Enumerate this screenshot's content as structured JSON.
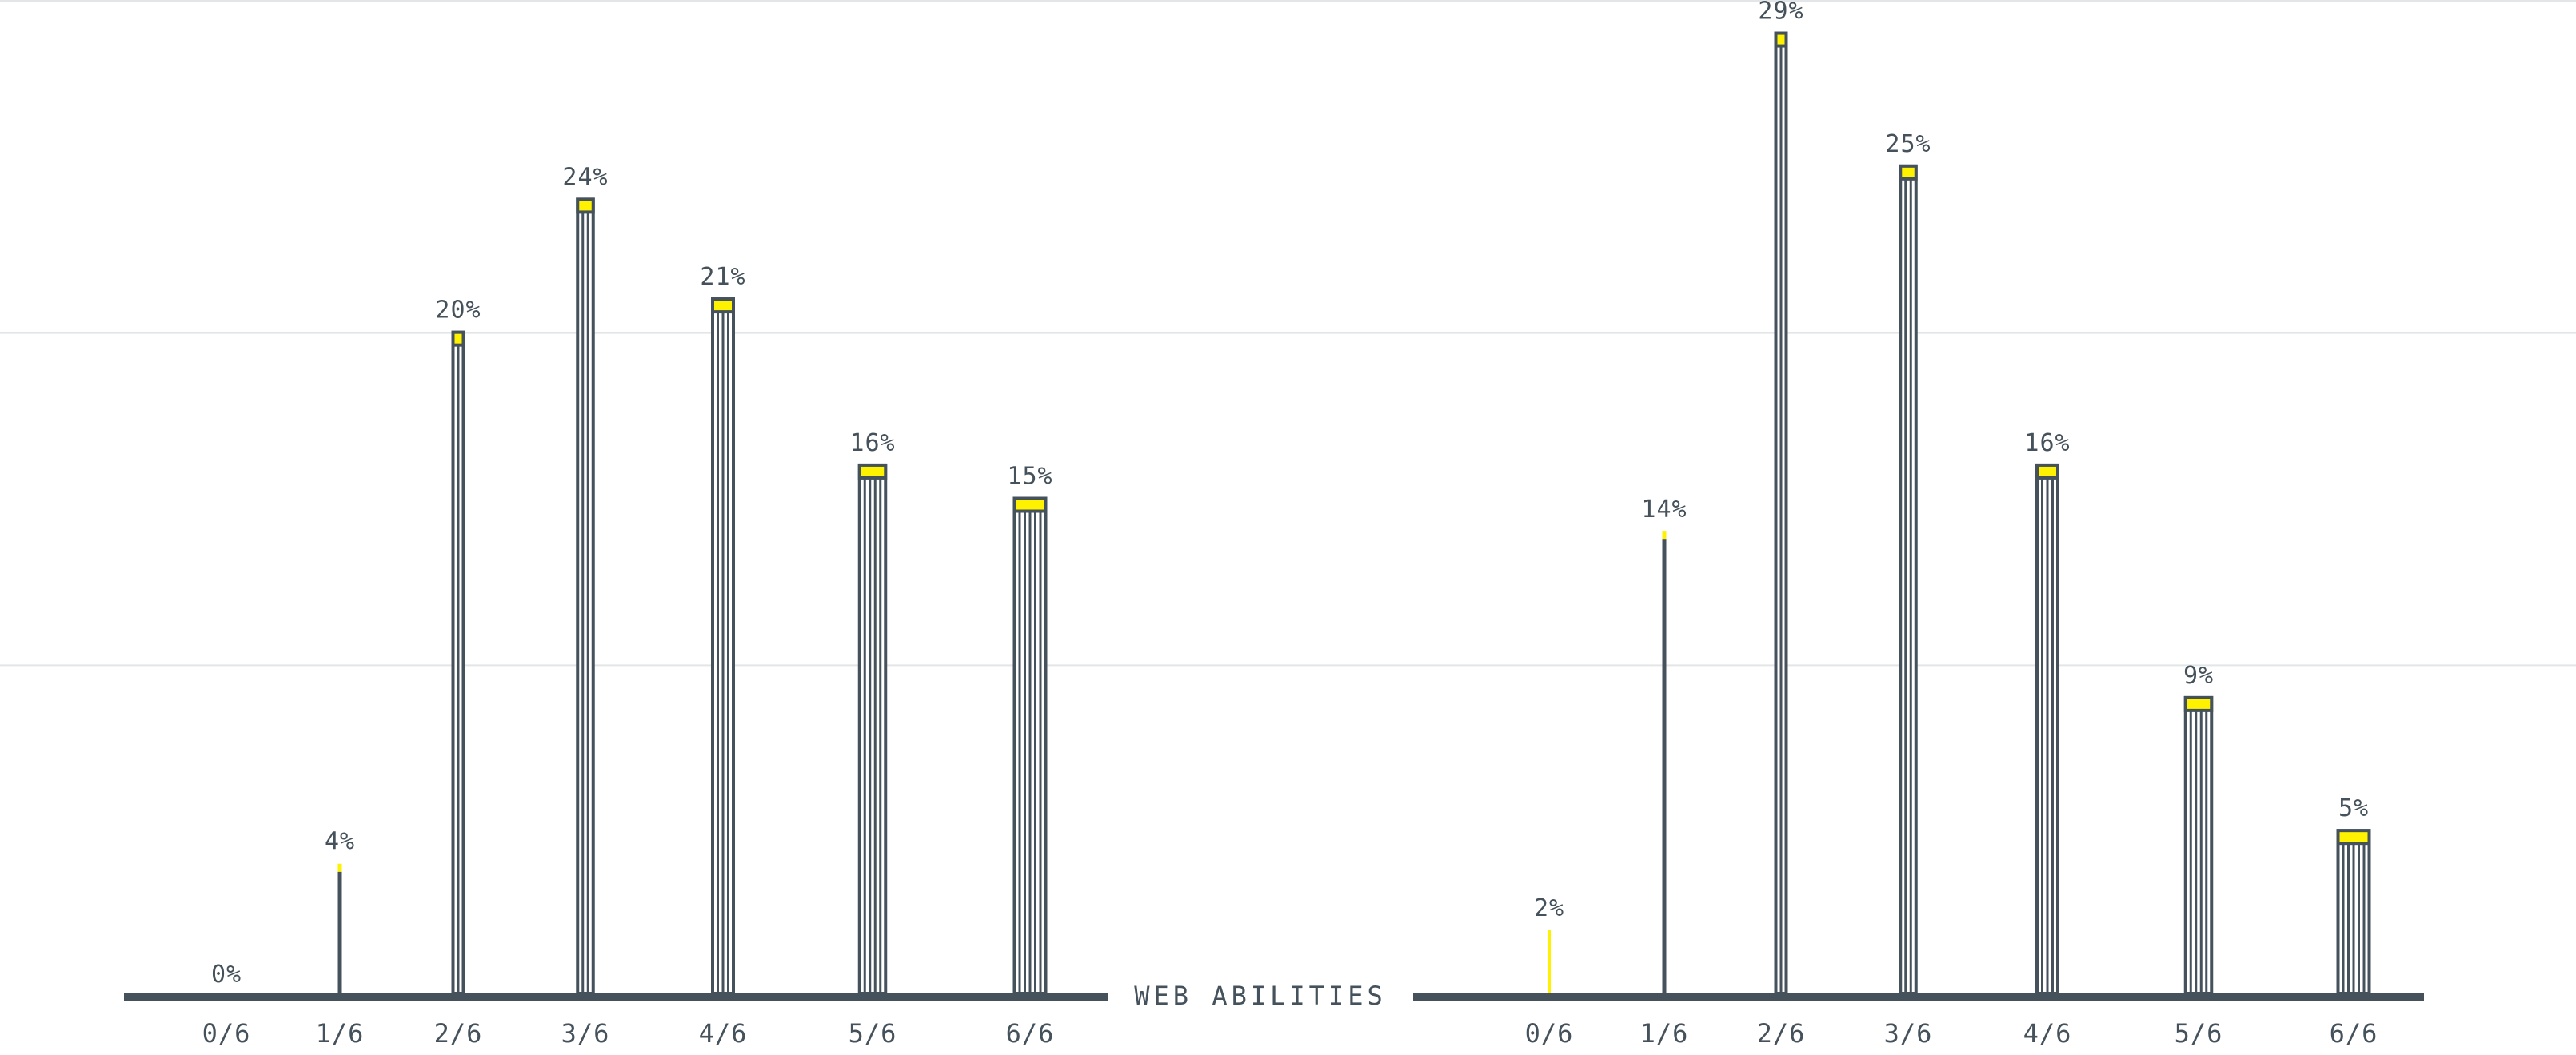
{
  "colors": {
    "stroke": "#45525b",
    "cap": "#fff200",
    "grid": "#e3e6e8",
    "text": "#45525b"
  },
  "axis_title": "WEB ABILITIES",
  "chart_data": [
    {
      "type": "bar",
      "categories": [
        "0/6",
        "1/6",
        "2/6",
        "3/6",
        "4/6",
        "5/6",
        "6/6"
      ],
      "values": [
        0,
        4,
        20,
        24,
        21,
        16,
        15
      ],
      "value_labels": [
        "0%",
        "4%",
        "20%",
        "24%",
        "21%",
        "16%",
        "15%"
      ],
      "xlabel": "WEB ABILITIES",
      "ylim": [
        0,
        30
      ],
      "grid": true
    },
    {
      "type": "bar",
      "categories": [
        "0/6",
        "1/6",
        "2/6",
        "3/6",
        "4/6",
        "5/6",
        "6/6"
      ],
      "values": [
        2,
        14,
        29,
        25,
        16,
        9,
        5
      ],
      "value_labels": [
        "2%",
        "14%",
        "29%",
        "25%",
        "16%",
        "9%",
        "5%"
      ],
      "xlabel": "WEB ABILITIES",
      "ylim": [
        0,
        30
      ],
      "grid": true
    }
  ]
}
